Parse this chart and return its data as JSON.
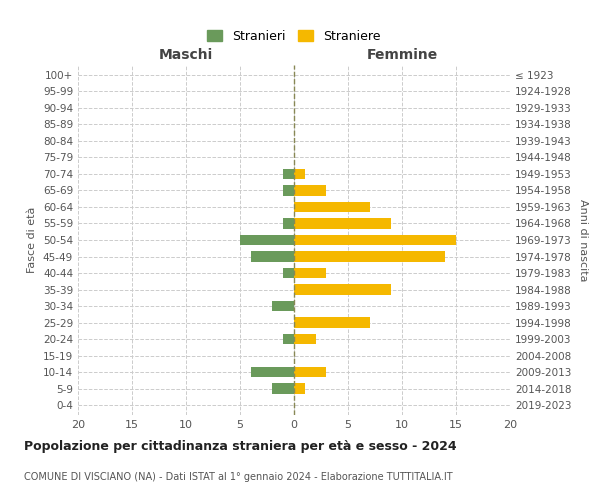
{
  "age_groups": [
    "0-4",
    "5-9",
    "10-14",
    "15-19",
    "20-24",
    "25-29",
    "30-34",
    "35-39",
    "40-44",
    "45-49",
    "50-54",
    "55-59",
    "60-64",
    "65-69",
    "70-74",
    "75-79",
    "80-84",
    "85-89",
    "90-94",
    "95-99",
    "100+"
  ],
  "birth_years": [
    "2019-2023",
    "2014-2018",
    "2009-2013",
    "2004-2008",
    "1999-2003",
    "1994-1998",
    "1989-1993",
    "1984-1988",
    "1979-1983",
    "1974-1978",
    "1969-1973",
    "1964-1968",
    "1959-1963",
    "1954-1958",
    "1949-1953",
    "1944-1948",
    "1939-1943",
    "1934-1938",
    "1929-1933",
    "1924-1928",
    "≤ 1923"
  ],
  "maschi": [
    0,
    2,
    4,
    0,
    1,
    0,
    2,
    0,
    1,
    4,
    5,
    1,
    0,
    1,
    1,
    0,
    0,
    0,
    0,
    0,
    0
  ],
  "femmine": [
    0,
    1,
    3,
    0,
    2,
    7,
    0,
    9,
    3,
    14,
    15,
    9,
    7,
    3,
    1,
    0,
    0,
    0,
    0,
    0,
    0
  ],
  "color_maschi": "#6a9a5b",
  "color_femmine": "#f5b800",
  "title": "Popolazione per cittadinanza straniera per età e sesso - 2024",
  "subtitle": "COMUNE DI VISCIANO (NA) - Dati ISTAT al 1° gennaio 2024 - Elaborazione TUTTITALIA.IT",
  "xlabel_left": "Maschi",
  "xlabel_right": "Femmine",
  "ylabel_left": "Fasce di età",
  "ylabel_right": "Anni di nascita",
  "legend_maschi": "Stranieri",
  "legend_femmine": "Straniere",
  "xlim": 20,
  "background_color": "#ffffff",
  "grid_color": "#cccccc"
}
